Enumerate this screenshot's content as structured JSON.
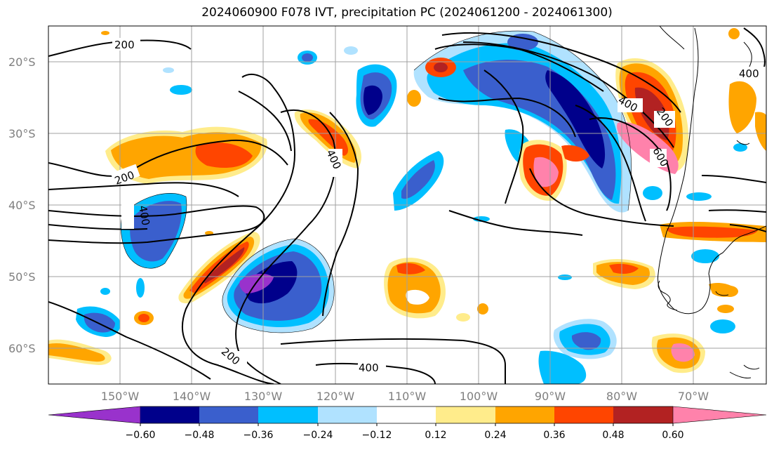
{
  "title": "2024060900 F078 IVT, precipitation PC (2024061200 - 2024061300)",
  "colors": {
    "lt_-0.60": "#9932cc",
    "-0.60_-0.48": "#00008b",
    "-0.48_-0.36": "#3a5fcd",
    "-0.36_-0.24": "#00bfff",
    "-0.24_-0.12": "#b0e2ff",
    "-0.12_0.12": "#ffffff",
    "0.12_0.24": "#ffec8b",
    "0.24_0.36": "#ffa500",
    "0.36_0.48": "#ff4500",
    "0.48_0.60": "#b22222",
    "gt_0.60": "#ff82ab"
  },
  "lon_ticks": [
    "150°W",
    "140°W",
    "130°W",
    "120°W",
    "110°W",
    "100°W",
    "90°W",
    "80°W",
    "70°W"
  ],
  "lat_ticks": [
    "20°S",
    "30°S",
    "40°S",
    "50°S",
    "60°S"
  ],
  "colorbar_ticks": [
    "−0.60",
    "−0.48",
    "−0.36",
    "−0.24",
    "−0.12",
    "0.12",
    "0.24",
    "0.36",
    "0.48",
    "0.60"
  ],
  "contour_labels": [
    "200",
    "200",
    "400",
    "400",
    "400",
    "200",
    "600",
    "400",
    "200",
    "400"
  ]
}
